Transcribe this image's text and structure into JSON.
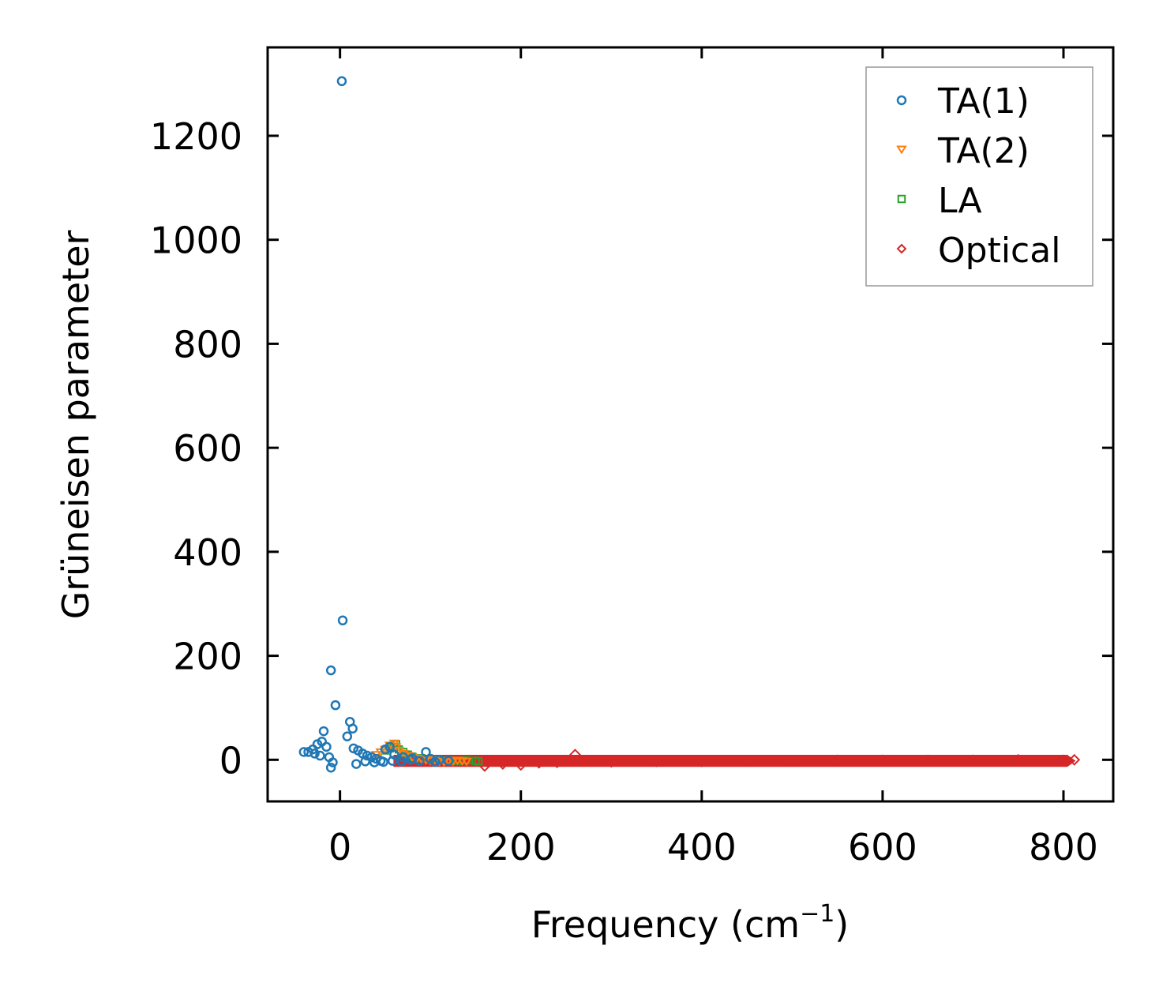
{
  "chart_data": {
    "type": "scatter",
    "title": "",
    "xlabel": "Frequency (cm",
    "xlabel_sup": "−1",
    "xlabel_close": ")",
    "ylabel": "Grüneisen parameter",
    "xlim": [
      -80,
      855
    ],
    "ylim": [
      -80,
      1370
    ],
    "xticks": [
      0,
      200,
      400,
      600,
      800
    ],
    "yticks": [
      0,
      200,
      400,
      600,
      800,
      1000,
      1200
    ],
    "xtick_labels": [
      "0",
      "200",
      "400",
      "600",
      "800"
    ],
    "ytick_labels": [
      "0",
      "200",
      "400",
      "600",
      "800",
      "1000",
      "1200"
    ],
    "legend_position": "top-right",
    "series": [
      {
        "name": "TA(1)",
        "marker": "circle",
        "color": "#1f77b4",
        "points": [
          [
            2,
            1305
          ],
          [
            3,
            268
          ],
          [
            -10,
            172
          ],
          [
            -5,
            105
          ],
          [
            11,
            73
          ],
          [
            14,
            60
          ],
          [
            8,
            45
          ],
          [
            -18,
            55
          ],
          [
            -20,
            35
          ],
          [
            -25,
            30
          ],
          [
            -15,
            25
          ],
          [
            -30,
            20
          ],
          [
            -35,
            15
          ],
          [
            -40,
            15
          ],
          [
            -28,
            12
          ],
          [
            -22,
            8
          ],
          [
            -12,
            5
          ],
          [
            -8,
            -5
          ],
          [
            -10,
            -15
          ],
          [
            15,
            22
          ],
          [
            20,
            18
          ],
          [
            25,
            12
          ],
          [
            30,
            8
          ],
          [
            35,
            5
          ],
          [
            40,
            2
          ],
          [
            45,
            -2
          ],
          [
            50,
            20
          ],
          [
            55,
            25
          ],
          [
            60,
            10
          ],
          [
            70,
            5
          ],
          [
            80,
            3
          ],
          [
            95,
            15
          ],
          [
            100,
            2
          ],
          [
            110,
            0
          ],
          [
            120,
            -2
          ],
          [
            18,
            -8
          ],
          [
            28,
            -3
          ],
          [
            38,
            -5
          ],
          [
            48,
            -4
          ],
          [
            58,
            -2
          ],
          [
            68,
            -3
          ],
          [
            78,
            0
          ],
          [
            88,
            -2
          ],
          [
            105,
            -4
          ]
        ]
      },
      {
        "name": "TA(2)",
        "marker": "triangle-down",
        "color": "#ff7f0e",
        "points": [
          [
            40,
            10
          ],
          [
            45,
            15
          ],
          [
            50,
            20
          ],
          [
            55,
            28
          ],
          [
            60,
            32
          ],
          [
            62,
            25
          ],
          [
            65,
            18
          ],
          [
            70,
            12
          ],
          [
            75,
            8
          ],
          [
            80,
            5
          ],
          [
            85,
            3
          ],
          [
            90,
            2
          ],
          [
            95,
            0
          ],
          [
            100,
            -2
          ],
          [
            105,
            0
          ],
          [
            110,
            -3
          ],
          [
            115,
            -4
          ],
          [
            120,
            -2
          ],
          [
            125,
            -3
          ],
          [
            130,
            -1
          ],
          [
            135,
            -2
          ],
          [
            140,
            -3
          ]
        ]
      },
      {
        "name": "LA",
        "marker": "square",
        "color": "#2ca02c",
        "points": [
          [
            50,
            18
          ],
          [
            55,
            22
          ],
          [
            60,
            25
          ],
          [
            62,
            30
          ],
          [
            65,
            20
          ],
          [
            70,
            15
          ],
          [
            75,
            10
          ],
          [
            80,
            6
          ],
          [
            90,
            3
          ],
          [
            100,
            1
          ],
          [
            110,
            0
          ],
          [
            120,
            -1
          ],
          [
            130,
            -2
          ],
          [
            140,
            -1
          ],
          [
            150,
            -2
          ],
          [
            153,
            -3
          ]
        ]
      },
      {
        "name": "Optical",
        "marker": "diamond",
        "color": "#d62728",
        "band": {
          "x_start": 60,
          "x_end": 812,
          "y_low": -12,
          "y_high": 8
        },
        "points": [
          [
            160,
            -12
          ],
          [
            180,
            -8
          ],
          [
            200,
            -10
          ],
          [
            220,
            -6
          ],
          [
            240,
            -5
          ],
          [
            260,
            10
          ],
          [
            300,
            -4
          ],
          [
            350,
            -3
          ],
          [
            400,
            -3
          ],
          [
            450,
            -2
          ],
          [
            500,
            -2
          ],
          [
            550,
            -1
          ],
          [
            600,
            -1
          ],
          [
            650,
            -1
          ],
          [
            700,
            -1
          ],
          [
            750,
            0
          ],
          [
            800,
            -1
          ],
          [
            812,
            0
          ]
        ]
      }
    ]
  }
}
